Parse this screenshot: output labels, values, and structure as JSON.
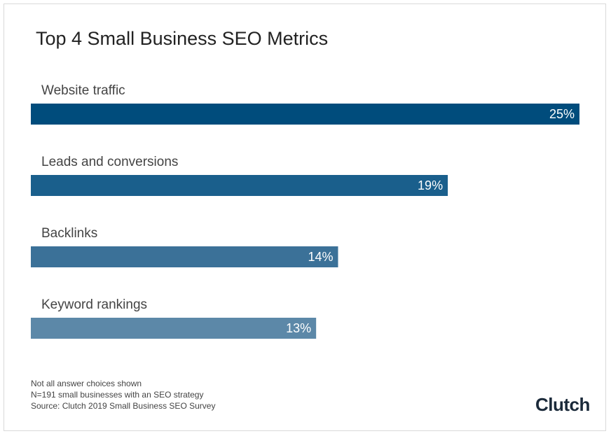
{
  "title": "Top 4 Small Business SEO Metrics",
  "chart_data": {
    "type": "bar",
    "orientation": "horizontal",
    "title": "Top 4 Small Business SEO Metrics",
    "categories": [
      "Website traffic",
      "Leads and conversions",
      "Backlinks",
      "Keyword rankings"
    ],
    "values": [
      25,
      19,
      14,
      13
    ],
    "value_labels": [
      "25%",
      "19%",
      "14%",
      "13%"
    ],
    "unit": "%",
    "xlim": [
      0,
      25
    ],
    "grid": false,
    "colors": [
      "#004c7c",
      "#1a5f8c",
      "#3b7198",
      "#5c88a8"
    ]
  },
  "footnotes": [
    "Not all answer choices shown",
    "N=191 small businesses with an SEO strategy",
    "Source: Clutch 2019 Small Business SEO Survey"
  ],
  "logo": "Clutch"
}
